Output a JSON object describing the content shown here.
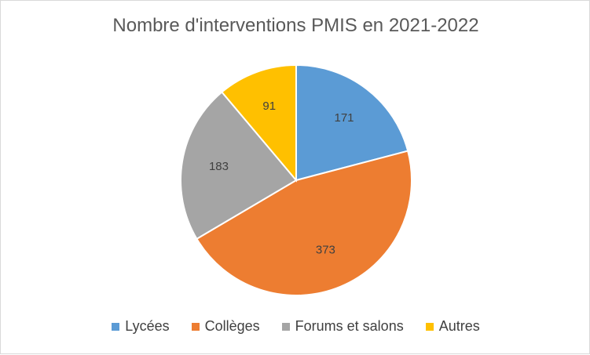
{
  "chart_data": {
    "type": "pie",
    "title": "Nombre d'interventions PMIS en 2021-2022",
    "categories": [
      "Lycées",
      "Collèges",
      "Forums et salons",
      "Autres"
    ],
    "values": [
      171,
      373,
      183,
      91
    ],
    "colors": [
      "#5b9bd5",
      "#ed7d31",
      "#a5a5a5",
      "#ffc000"
    ],
    "data_labels": [
      "171",
      "373",
      "183",
      "91"
    ],
    "legend_position": "bottom",
    "start_angle": "top, clockwise"
  }
}
